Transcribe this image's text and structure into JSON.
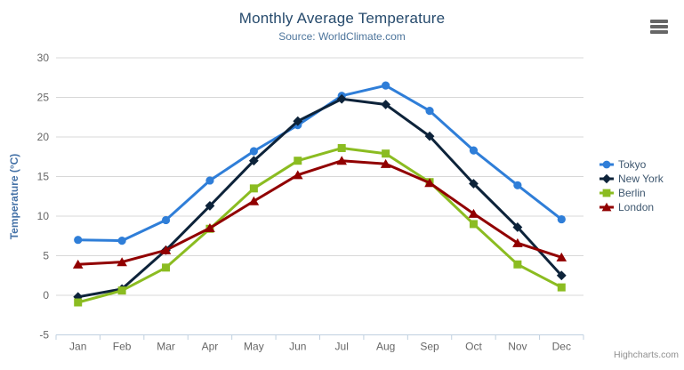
{
  "chart": {
    "credits": "Highcharts.com",
    "context_menu_icon": "hamburger-icon"
  },
  "chart_data": {
    "type": "line",
    "title": "Monthly Average Temperature",
    "subtitle": "Source: WorldClimate.com",
    "xlabel": "",
    "ylabel": "Temperature (°C)",
    "ylim": [
      -5,
      30
    ],
    "ytick_interval": 5,
    "grid": true,
    "legend_position": "right",
    "categories": [
      "Jan",
      "Feb",
      "Mar",
      "Apr",
      "May",
      "Jun",
      "Jul",
      "Aug",
      "Sep",
      "Oct",
      "Nov",
      "Dec"
    ],
    "series": [
      {
        "name": "Tokyo",
        "color": "#2f7ed8",
        "marker": "circle",
        "values": [
          7.0,
          6.9,
          9.5,
          14.5,
          18.2,
          21.5,
          25.2,
          26.5,
          23.3,
          18.3,
          13.9,
          9.6
        ]
      },
      {
        "name": "New York",
        "color": "#0d233a",
        "marker": "diamond",
        "values": [
          -0.2,
          0.8,
          5.7,
          11.3,
          17.0,
          22.0,
          24.8,
          24.1,
          20.1,
          14.1,
          8.6,
          2.5
        ]
      },
      {
        "name": "Berlin",
        "color": "#8bbc21",
        "marker": "square",
        "values": [
          -0.9,
          0.6,
          3.5,
          8.4,
          13.5,
          17.0,
          18.6,
          17.9,
          14.3,
          9.0,
          3.9,
          1.0
        ]
      },
      {
        "name": "London",
        "color": "#910000",
        "marker": "triangle",
        "values": [
          3.9,
          4.2,
          5.7,
          8.5,
          11.9,
          15.2,
          17.0,
          16.6,
          14.2,
          10.3,
          6.6,
          4.8
        ]
      }
    ],
    "colors": {
      "grid": "#D8D8D8",
      "axis_line": "#C0D0E0",
      "tick": "#C0D0E0",
      "axis_label": "#666666",
      "y_axis_title": "#4572A7",
      "title": "#274b6d",
      "subtitle": "#4d759c",
      "legend_text": "#3E576F",
      "credits": "#909090"
    }
  }
}
